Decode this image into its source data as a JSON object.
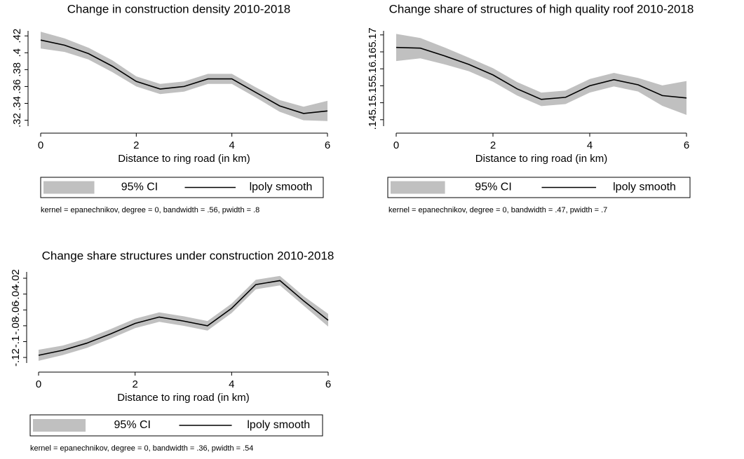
{
  "chart_data": [
    {
      "type": "line",
      "title": "Change in construction density 2010-2018",
      "xlabel": "Distance to ring road (in km)",
      "note": "kernel = epanechnikov, degree = 0, bandwidth = .56, pwidth = .8",
      "x": [
        0,
        0.5,
        1,
        1.5,
        2,
        2.5,
        3,
        3.5,
        4,
        4.5,
        5,
        5.5,
        6
      ],
      "series": [
        {
          "name": "95% CI",
          "color": "#c0c0c0",
          "lower": [
            0.405,
            0.401,
            0.392,
            0.377,
            0.36,
            0.351,
            0.354,
            0.363,
            0.363,
            0.347,
            0.33,
            0.32,
            0.319
          ],
          "upper": [
            0.425,
            0.417,
            0.406,
            0.391,
            0.372,
            0.363,
            0.366,
            0.375,
            0.375,
            0.359,
            0.344,
            0.336,
            0.343
          ]
        },
        {
          "name": "lpoly smooth",
          "color": "#000000",
          "values": [
            0.415,
            0.409,
            0.399,
            0.384,
            0.366,
            0.357,
            0.36,
            0.369,
            0.369,
            0.353,
            0.337,
            0.328,
            0.331
          ]
        }
      ],
      "xlim": [
        0,
        6
      ],
      "xticks": [
        0,
        2,
        4,
        6
      ],
      "ylim": [
        0.313,
        0.426
      ],
      "yticks": [
        {
          "value": 0.32,
          "label": ".32"
        },
        {
          "value": 0.34,
          "label": ".34"
        },
        {
          "value": 0.36,
          "label": ".36"
        },
        {
          "value": 0.38,
          "label": ".38"
        },
        {
          "value": 0.4,
          "label": ".4"
        },
        {
          "value": 0.42,
          "label": ".42"
        }
      ]
    },
    {
      "type": "line",
      "title": "Change share of structures of high quality roof 2010-2018",
      "xlabel": "Distance to ring road (in km)",
      "note": "kernel = epanechnikov, degree = 0, bandwidth = .47, pwidth = .7",
      "x": [
        0,
        0.5,
        1,
        1.5,
        2,
        2.5,
        3,
        3.5,
        4,
        4.5,
        5,
        5.5,
        6
      ],
      "series": [
        {
          "name": "95% CI",
          "color": "#c0c0c0",
          "lower": [
            0.1623,
            0.1631,
            0.1613,
            0.1593,
            0.1562,
            0.1521,
            0.149,
            0.1496,
            0.153,
            0.1548,
            0.1533,
            0.1491,
            0.1464
          ],
          "upper": [
            0.1703,
            0.1691,
            0.1663,
            0.1633,
            0.1602,
            0.1561,
            0.153,
            0.1536,
            0.157,
            0.1588,
            0.1573,
            0.1551,
            0.1564
          ]
        },
        {
          "name": "lpoly smooth",
          "color": "#000000",
          "values": [
            0.1663,
            0.1661,
            0.1638,
            0.1613,
            0.1582,
            0.1541,
            0.151,
            0.1516,
            0.155,
            0.1568,
            0.1553,
            0.1521,
            0.1514
          ]
        }
      ],
      "xlim": [
        0,
        6
      ],
      "xticks": [
        0,
        2,
        4,
        6
      ],
      "ylim": [
        0.1431,
        0.1712
      ],
      "yticks": [
        {
          "value": 0.145,
          "label": ".145"
        },
        {
          "value": 0.15,
          "label": ".15"
        },
        {
          "value": 0.155,
          "label": ".155"
        },
        {
          "value": 0.16,
          "label": ".16"
        },
        {
          "value": 0.165,
          "label": ".165"
        },
        {
          "value": 0.17,
          "label": ".17"
        }
      ]
    },
    {
      "type": "line",
      "title": "Change share structures under construction 2010-2018",
      "xlabel": "Distance to ring road (in km)",
      "note": "kernel = epanechnikov, degree = 0, bandwidth = .36, pwidth = .54",
      "x": [
        0,
        0.5,
        1,
        1.5,
        2,
        2.5,
        3,
        3.5,
        4,
        4.5,
        5,
        5.5,
        6
      ],
      "series": [
        {
          "name": "95% CI",
          "color": "#c0c0c0",
          "lower": [
            -0.1243,
            -0.117,
            -0.108,
            -0.096,
            -0.083,
            -0.075,
            -0.08,
            -0.086,
            -0.064,
            -0.034,
            -0.029,
            -0.055,
            -0.081
          ],
          "upper": [
            -0.1103,
            -0.105,
            -0.096,
            -0.084,
            -0.071,
            -0.063,
            -0.068,
            -0.074,
            -0.052,
            -0.022,
            -0.017,
            -0.043,
            -0.065
          ]
        },
        {
          "name": "lpoly smooth",
          "color": "#000000",
          "values": [
            -0.1173,
            -0.111,
            -0.102,
            -0.09,
            -0.077,
            -0.069,
            -0.074,
            -0.08,
            -0.058,
            -0.028,
            -0.023,
            -0.049,
            -0.073
          ]
        }
      ],
      "xlim": [
        0,
        6
      ],
      "xticks": [
        0,
        2,
        4,
        6
      ],
      "ylim": [
        -0.127,
        -0.012
      ],
      "yticks": [
        {
          "value": -0.12,
          "label": "-.12"
        },
        {
          "value": -0.1,
          "label": "-.1"
        },
        {
          "value": -0.08,
          "label": "-.08"
        },
        {
          "value": -0.06,
          "label": "-.06"
        },
        {
          "value": -0.04,
          "label": "-.04"
        },
        {
          "value": -0.02,
          "label": "-.02"
        }
      ]
    }
  ]
}
